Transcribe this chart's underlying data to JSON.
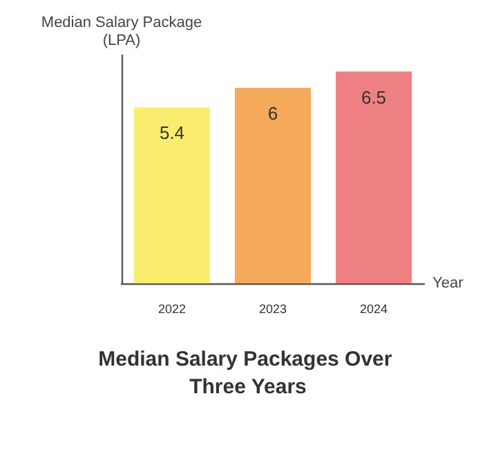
{
  "chart_data": {
    "type": "bar",
    "title": "Median Salary Packages Over Three Years",
    "xlabel": "Year",
    "ylabel": "Median Salary Package\n(LPA)",
    "categories": [
      "2022",
      "2023",
      "2024"
    ],
    "values": [
      5.4,
      6,
      6.5
    ],
    "colors": [
      "#f9ec6e",
      "#f5a95a",
      "#ee7f82"
    ],
    "data_labels": true,
    "grid": false
  }
}
